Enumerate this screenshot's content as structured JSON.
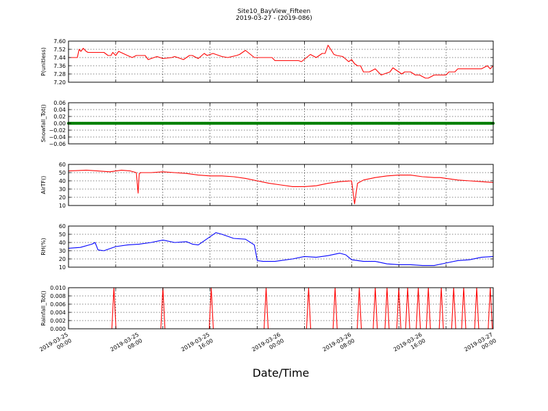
{
  "title_line1": "Site10_BayView_Fifteen",
  "title_line2": "2019-03-27 - (2019-086)",
  "xlabel": "Date/Time",
  "x_tick_labels": [
    [
      "2019-03-25",
      "00:00"
    ],
    [
      "2019-03-25",
      "08:00"
    ],
    [
      "2019-03-25",
      "16:00"
    ],
    [
      "2019-03-26",
      "00:00"
    ],
    [
      "2019-03-26",
      "08:00"
    ],
    [
      "2019-03-26",
      "16:00"
    ],
    [
      "2019-03-27",
      "00:00"
    ]
  ],
  "chart_data": [
    {
      "type": "line",
      "ylabel": "P(unitless)",
      "color": "#ff0000",
      "ylim": [
        7.2,
        7.6
      ],
      "yticks": [
        "7.60",
        "7.52",
        "7.44",
        "7.36",
        "7.28",
        "7.20"
      ],
      "ytick_values": [
        7.6,
        7.52,
        7.44,
        7.36,
        7.28,
        7.2
      ],
      "x_hours": [
        0,
        1.5,
        1.8,
        2.1,
        2.5,
        3.0,
        3.3,
        6.0,
        6.7,
        7.2,
        7.5,
        8.0,
        8.5,
        10.0,
        10.8,
        11.5,
        12.0,
        13.0,
        13.5,
        15.0,
        16.0,
        17.5,
        18.0,
        19.5,
        20.5,
        21.0,
        22.0,
        23.0,
        23.5,
        24.5,
        26.0,
        27.0,
        28.5,
        29.0,
        30.0,
        31.5,
        32.0,
        34.5,
        35.0,
        36.0,
        36.5,
        37.0,
        38.0,
        39.0,
        39.5,
        41.0,
        42.0,
        43.0,
        43.5,
        44.0,
        45.0,
        45.5,
        46.5,
        47.5,
        48.0,
        48.5,
        49.0,
        49.5,
        50.0,
        51.0,
        52.0,
        53.0,
        54.5,
        55.0,
        56.5,
        57.0,
        58.0,
        58.8,
        59.5,
        60.5,
        61.0,
        62.0,
        63.0,
        64.0,
        64.5,
        65.5,
        66.0,
        67.5,
        68.5,
        70.0,
        71.0,
        71.5,
        72.0
      ],
      "values": [
        7.44,
        7.44,
        7.52,
        7.5,
        7.53,
        7.5,
        7.49,
        7.49,
        7.46,
        7.46,
        7.49,
        7.46,
        7.5,
        7.46,
        7.44,
        7.46,
        7.46,
        7.46,
        7.42,
        7.45,
        7.43,
        7.44,
        7.45,
        7.42,
        7.46,
        7.46,
        7.43,
        7.48,
        7.46,
        7.48,
        7.45,
        7.44,
        7.46,
        7.47,
        7.51,
        7.44,
        7.44,
        7.44,
        7.41,
        7.41,
        7.41,
        7.41,
        7.41,
        7.41,
        7.4,
        7.47,
        7.44,
        7.48,
        7.48,
        7.56,
        7.47,
        7.46,
        7.45,
        7.4,
        7.42,
        7.38,
        7.36,
        7.36,
        7.3,
        7.3,
        7.33,
        7.27,
        7.3,
        7.34,
        7.28,
        7.3,
        7.3,
        7.27,
        7.27,
        7.24,
        7.24,
        7.27,
        7.27,
        7.27,
        7.3,
        7.3,
        7.33,
        7.33,
        7.33,
        7.33,
        7.36,
        7.33,
        7.36
      ]
    },
    {
      "type": "scatter",
      "ylabel": "Snowfall_Tot()",
      "color": "#008000",
      "ylim": [
        -0.06,
        0.06
      ],
      "yticks": [
        "0.06",
        "0.04",
        "0.02",
        "0.00",
        "−0.02",
        "−0.04",
        "−0.06"
      ],
      "ytick_values": [
        0.06,
        0.04,
        0.02,
        0.0,
        -0.02,
        -0.04,
        -0.06
      ],
      "x_hours_range": [
        0,
        72
      ],
      "constant_value": 0.0
    },
    {
      "type": "line",
      "ylabel": "AirTF()",
      "color": "#ff0000",
      "ylim": [
        10,
        60
      ],
      "yticks": [
        "60",
        "50",
        "40",
        "30",
        "20",
        "10"
      ],
      "ytick_values": [
        60,
        50,
        40,
        30,
        20,
        10
      ],
      "x_hours": [
        0,
        3,
        5,
        7,
        9,
        10.5,
        11.5,
        11.8,
        12.0,
        12.3,
        14,
        16,
        18,
        20,
        22,
        24,
        25,
        26,
        28,
        30,
        32,
        34,
        36,
        38,
        40,
        42,
        44,
        46,
        48,
        48.5,
        49,
        50,
        52,
        54,
        56,
        58,
        60,
        62,
        63,
        64,
        66,
        68,
        70,
        72
      ],
      "values": [
        52,
        53,
        52,
        51,
        53,
        52,
        50,
        25,
        49,
        50,
        50,
        51,
        50,
        49,
        47,
        46,
        46,
        46,
        45,
        43,
        40,
        37,
        35,
        33,
        33,
        34,
        37,
        39,
        40,
        12,
        37,
        41,
        44,
        46,
        47,
        47,
        45,
        44,
        44,
        43,
        41,
        40,
        39,
        38
      ]
    },
    {
      "type": "line",
      "ylabel": "RH(%)",
      "color": "#0000ff",
      "ylim": [
        10,
        60
      ],
      "yticks": [
        "60",
        "50",
        "40",
        "30",
        "20",
        "10"
      ],
      "ytick_values": [
        60,
        50,
        40,
        30,
        20,
        10
      ],
      "x_hours": [
        0,
        2,
        4,
        4.5,
        5,
        6,
        8,
        10,
        12,
        14,
        16,
        18,
        20,
        21,
        22,
        24,
        25,
        26,
        28,
        30,
        31.5,
        32,
        33,
        35,
        38,
        40,
        42,
        44,
        46,
        47,
        48,
        50,
        52,
        54,
        56,
        58,
        60,
        62,
        64,
        66,
        68,
        70,
        72
      ],
      "values": [
        33,
        34,
        38,
        40,
        31,
        30,
        35,
        37,
        38,
        40,
        43,
        40,
        41,
        38,
        37,
        47,
        52,
        50,
        45,
        44,
        37,
        18,
        17,
        17,
        20,
        23,
        22,
        24,
        27,
        25,
        19,
        17,
        17,
        14,
        13,
        13,
        12,
        12,
        15,
        18,
        19,
        22,
        23
      ]
    },
    {
      "type": "line",
      "ylabel": "Rainfall_Tot()",
      "color": "#ff0000",
      "ylim": [
        0.0,
        0.01
      ],
      "yticks": [
        "0.010",
        "0.008",
        "0.006",
        "0.004",
        "0.002",
        "0.000"
      ],
      "ytick_values": [
        0.01,
        0.008,
        0.006,
        0.004,
        0.002,
        0.0
      ],
      "spike_value": 0.01,
      "spike_x_hours": [
        7.7,
        16.0,
        24.2,
        33.5,
        40.7,
        45.2,
        49.3,
        52.0,
        54.0,
        56.0,
        57.5,
        59.3,
        61.0,
        63.2,
        65.3,
        67.0,
        69.2,
        71.5
      ]
    }
  ]
}
